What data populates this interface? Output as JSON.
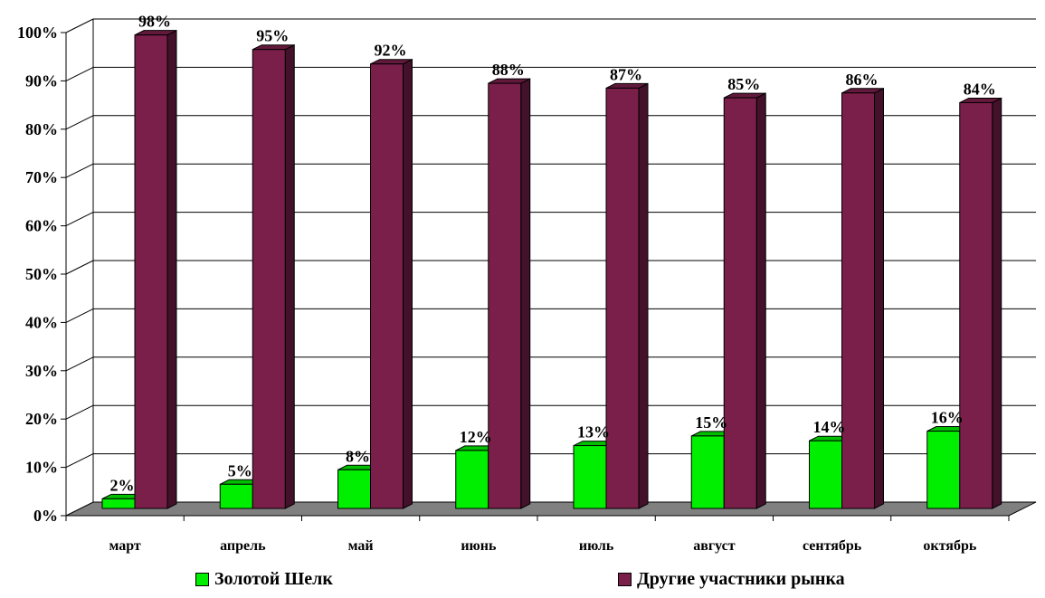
{
  "chart_data": {
    "type": "bar",
    "categories": [
      "март",
      "апрель",
      "май",
      "июнь",
      "июль",
      "август",
      "сентябрь",
      "октябрь"
    ],
    "series": [
      {
        "name": "Золотой Шелк",
        "values": [
          2,
          5,
          8,
          12,
          13,
          15,
          14,
          16
        ],
        "labels": [
          "2%",
          "5%",
          "8%",
          "12%",
          "13%",
          "15%",
          "14%",
          "16%"
        ]
      },
      {
        "name": "Другие участники рынка",
        "values": [
          98,
          95,
          92,
          88,
          87,
          85,
          86,
          84
        ],
        "labels": [
          "98%",
          "95%",
          "92%",
          "88%",
          "87%",
          "85%",
          "86%",
          "84%"
        ]
      }
    ],
    "y_ticks": [
      "0%",
      "10%",
      "20%",
      "30%",
      "40%",
      "50%",
      "60%",
      "70%",
      "80%",
      "90%",
      "100%"
    ],
    "ylim": [
      0,
      100
    ],
    "grid": true,
    "legend_position": "bottom",
    "colors": {
      "series1": "#00ee00",
      "series2": "#7a1f4a",
      "floor": "#808080"
    }
  }
}
